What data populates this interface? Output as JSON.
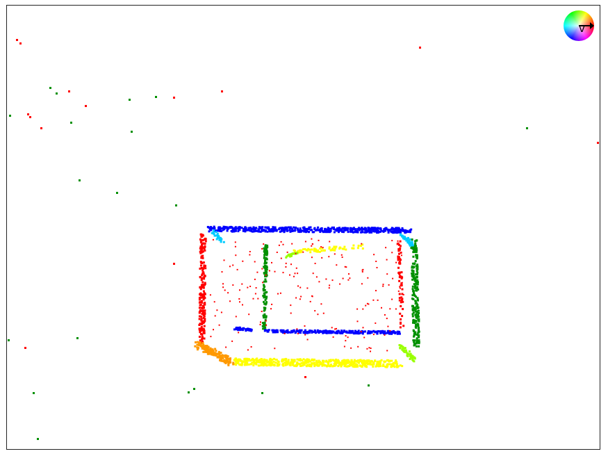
{
  "canvas": {
    "background": "#ffffff",
    "border": "#222222"
  },
  "direction_wheel": {
    "label": "v",
    "arrow_icon": "right-arrow-icon"
  },
  "colors": {
    "red": "#ff0000",
    "green": "#009000",
    "blue": "#0000ff",
    "yellow": "#ffff00",
    "orange": "#ff9900",
    "cyan": "#00ccff",
    "lime": "#99ff00"
  }
}
